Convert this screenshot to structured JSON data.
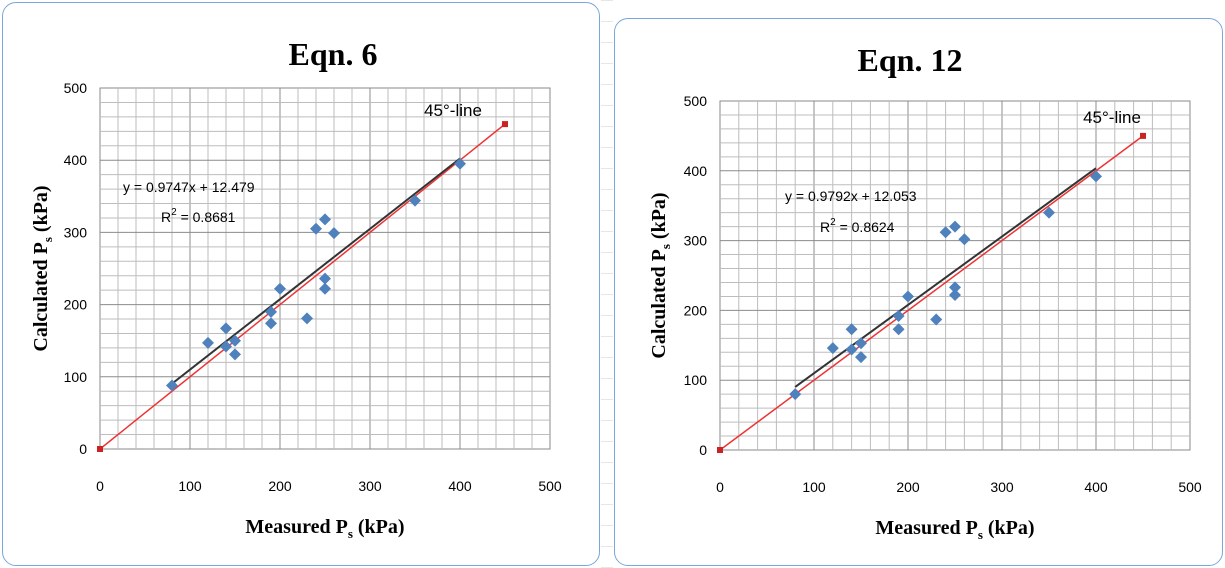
{
  "chart_data": [
    {
      "type": "scatter",
      "title": "Eqn. 6",
      "xlabel": "Measured P",
      "xlabel_sub": "s",
      "xlabel_tail": " (kPa)",
      "ylabel": "Calculated  P",
      "ylabel_sub": "s",
      "ylabel_tail": " (kPa)",
      "xlim": [
        0,
        500
      ],
      "ylim": [
        0,
        500
      ],
      "xticks": [
        "0",
        "100",
        "200",
        "300",
        "400",
        "500"
      ],
      "yticks": [
        "0",
        "100",
        "200",
        "300",
        "400",
        "500"
      ],
      "grid": true,
      "series": [
        {
          "points": [
            [
              80,
              88
            ],
            [
              120,
              147
            ],
            [
              140,
              167
            ],
            [
              140,
              142
            ],
            [
              150,
              131
            ],
            [
              150,
              150
            ],
            [
              190,
              174
            ],
            [
              190,
              190
            ],
            [
              200,
              222
            ],
            [
              230,
              181
            ],
            [
              240,
              305
            ],
            [
              250,
              318
            ],
            [
              250,
              236
            ],
            [
              250,
              222
            ],
            [
              260,
              299
            ],
            [
              350,
              344
            ],
            [
              400,
              395
            ]
          ],
          "color": "#4f81bd",
          "marker": "diamond"
        }
      ],
      "trendline": {
        "slope": 0.9747,
        "intercept": 12.479,
        "x_range": [
          80,
          400
        ],
        "color": "#333333"
      },
      "reference_line": {
        "points": [
          [
            0,
            0
          ],
          [
            450,
            450
          ]
        ],
        "color": "#ee3333",
        "label": "45°-line"
      },
      "annotations": {
        "equation": "y = 0.9747x + 12.479",
        "r2_prefix": "R",
        "r2_sup": "2",
        "r2_value": " = 0.8681"
      }
    },
    {
      "type": "scatter",
      "title": "Eqn. 12",
      "xlabel": "Measured P",
      "xlabel_sub": "s",
      "xlabel_tail": " (kPa)",
      "ylabel": "Calculated  P",
      "ylabel_sub": "s",
      "ylabel_tail": " (kPa)",
      "xlim": [
        0,
        500
      ],
      "ylim": [
        0,
        500
      ],
      "xticks": [
        "0",
        "100",
        "200",
        "300",
        "400",
        "500"
      ],
      "yticks": [
        "0",
        "100",
        "200",
        "300",
        "400",
        "500"
      ],
      "grid": true,
      "series": [
        {
          "points": [
            [
              80,
              80
            ],
            [
              120,
              146
            ],
            [
              140,
              173
            ],
            [
              140,
              144
            ],
            [
              150,
              133
            ],
            [
              150,
              153
            ],
            [
              190,
              173
            ],
            [
              190,
              192
            ],
            [
              200,
              220
            ],
            [
              230,
              187
            ],
            [
              240,
              312
            ],
            [
              250,
              320
            ],
            [
              250,
              233
            ],
            [
              250,
              222
            ],
            [
              260,
              302
            ],
            [
              350,
              340
            ],
            [
              400,
              392
            ]
          ],
          "color": "#4f81bd",
          "marker": "diamond"
        }
      ],
      "trendline": {
        "slope": 0.9792,
        "intercept": 12.053,
        "x_range": [
          80,
          400
        ],
        "color": "#333333"
      },
      "reference_line": {
        "points": [
          [
            0,
            0
          ],
          [
            450,
            450
          ]
        ],
        "color": "#ee3333",
        "label": "45°-line"
      },
      "annotations": {
        "equation": "y = 0.9792x + 12.053",
        "r2_prefix": "R",
        "r2_sup": "2",
        "r2_value": " = 0.8624"
      }
    }
  ]
}
